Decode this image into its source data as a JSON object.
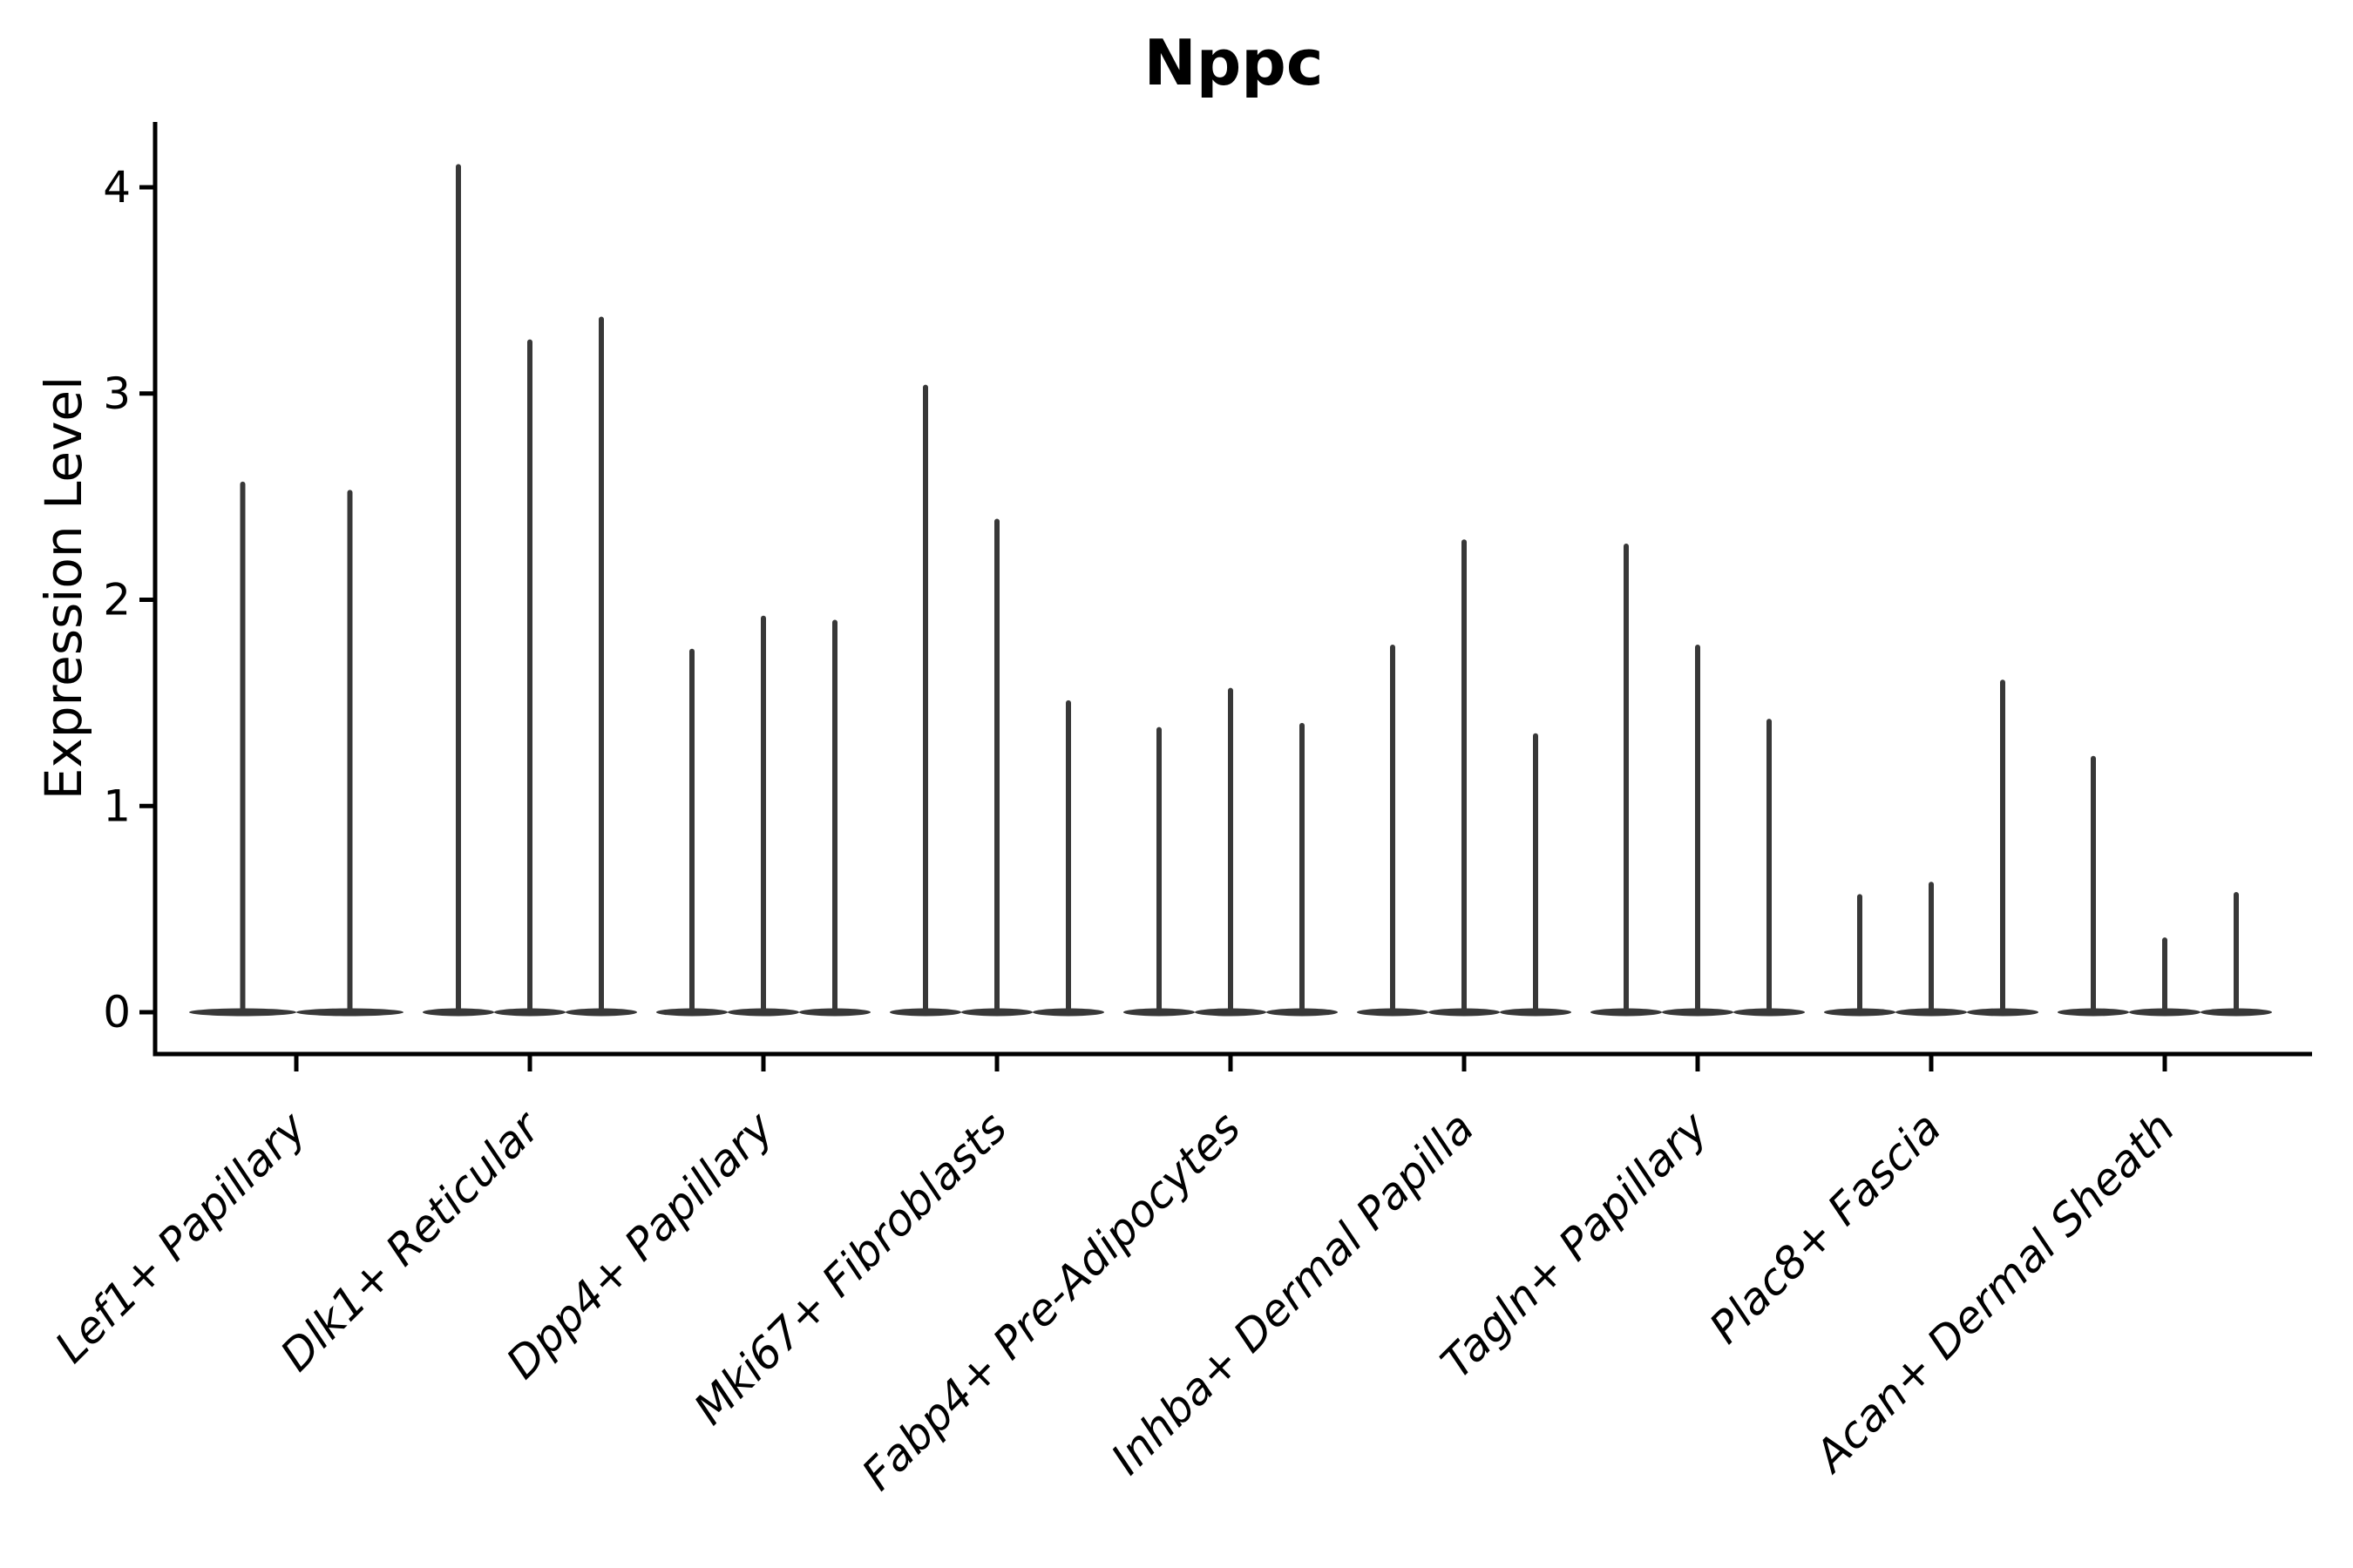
{
  "title": "Nppc",
  "ylabel": "Expression Level",
  "style": {
    "background": "#ffffff",
    "axis_color": "#000000",
    "text_color": "#000000",
    "violin_color": "#383838"
  },
  "chart_data": {
    "type": "violin",
    "title": "Nppc",
    "xlabel": "",
    "ylabel": "Expression Level",
    "ylim": [
      0,
      4.32
    ],
    "yticks": [
      0,
      1,
      2,
      3,
      4
    ],
    "grid": false,
    "legend": "none",
    "shape_note": "each violin is a thin vertical spike from 0 up to its peak value with a wide flat density lens at 0",
    "categories": [
      "Lef1+ Papillary",
      "Dlk1+ Reticular",
      "Dpp4+ Papillary",
      "Mki67+ Fibroblasts",
      "Fabp4+ Pre-Adipocytes",
      "Inhba+ Dermal Papilla",
      "Tagln+ Papillary",
      "Plac8+ Fascia",
      "Acan+ Dermal Sheath"
    ],
    "groups": [
      {
        "category": "Lef1+ Papillary",
        "violin_peaks": [
          2.56,
          2.52
        ]
      },
      {
        "category": "Dlk1+ Reticular",
        "violin_peaks": [
          4.1,
          3.25,
          3.36
        ]
      },
      {
        "category": "Dpp4+ Papillary",
        "violin_peaks": [
          1.75,
          1.91,
          1.89
        ]
      },
      {
        "category": "Mki67+ Fibroblasts",
        "violin_peaks": [
          3.03,
          2.38,
          1.5
        ]
      },
      {
        "category": "Fabp4+ Pre-Adipocytes",
        "violin_peaks": [
          1.37,
          1.56,
          1.39
        ]
      },
      {
        "category": "Inhba+ Dermal Papilla",
        "violin_peaks": [
          1.77,
          2.28,
          1.34
        ]
      },
      {
        "category": "Tagln+ Papillary",
        "violin_peaks": [
          2.26,
          1.77,
          1.41
        ]
      },
      {
        "category": "Plac8+ Fascia",
        "violin_peaks": [
          0.56,
          0.62,
          1.6
        ]
      },
      {
        "category": "Acan+ Dermal Sheath",
        "violin_peaks": [
          1.23,
          0.35,
          0.57
        ]
      }
    ]
  }
}
